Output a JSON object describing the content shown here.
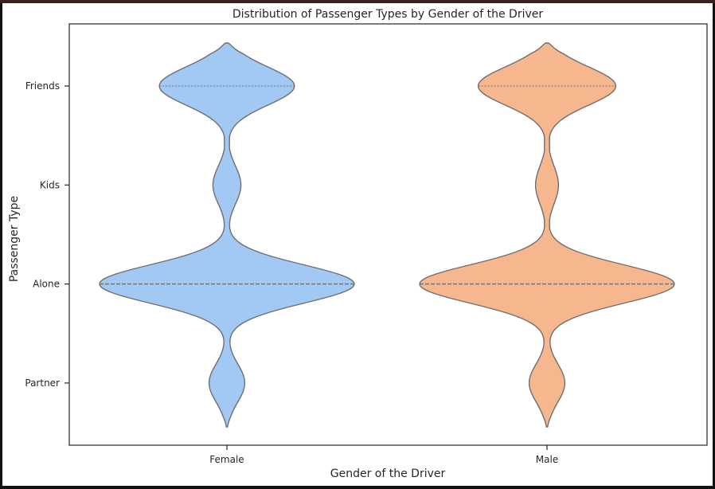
{
  "chart_data": {
    "type": "violin",
    "title": "Distribution of Passenger Types by Gender of the Driver",
    "xlabel": "Gender of the Driver",
    "ylabel": "Passenger Type",
    "categories": [
      "Female",
      "Male"
    ],
    "y_categories": [
      "Friends",
      "Kids",
      "Alone",
      "Partner"
    ],
    "series": [
      {
        "name": "Female",
        "color": "#a1c9f4",
        "median": "Alone",
        "quartile_lines": [
          "Alone",
          "Friends"
        ],
        "density_profile": [
          {
            "y": "Friends",
            "level": 0.53
          },
          {
            "y": "Kids",
            "level": 0.11
          },
          {
            "y": "Alone",
            "level": 1.0
          },
          {
            "y": "Partner",
            "level": 0.14
          }
        ]
      },
      {
        "name": "Male",
        "color": "#f6b78f",
        "median": "Alone",
        "quartile_lines": [
          "Alone",
          "Friends"
        ],
        "density_profile": [
          {
            "y": "Friends",
            "level": 0.54
          },
          {
            "y": "Kids",
            "level": 0.09
          },
          {
            "y": "Alone",
            "level": 1.0
          },
          {
            "y": "Partner",
            "level": 0.14
          }
        ]
      }
    ],
    "grid": false,
    "legend": "none"
  }
}
